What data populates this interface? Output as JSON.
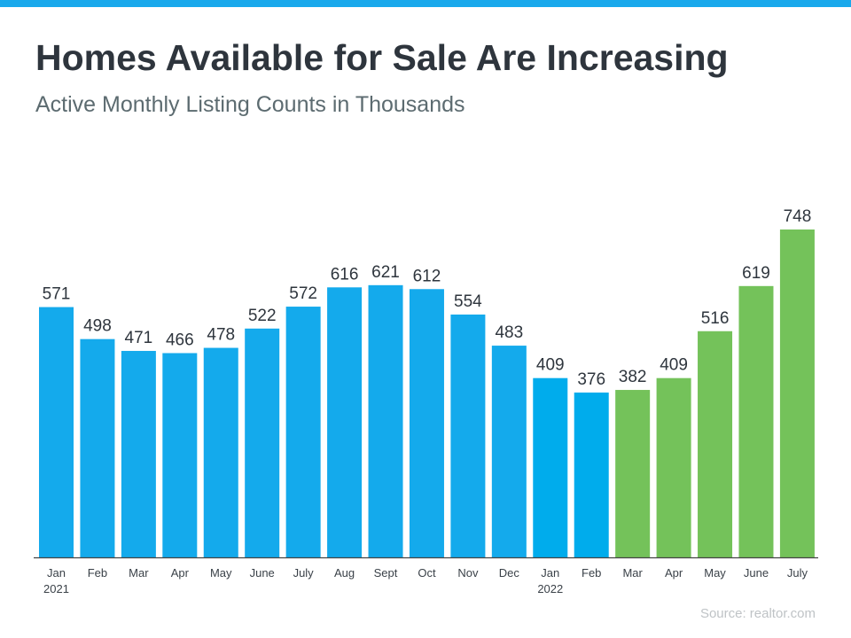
{
  "header": {
    "title": "Homes Available for Sale Are Increasing",
    "subtitle": "Active Monthly Listing Counts in Thousands"
  },
  "source": "Source: realtor.com",
  "colors": {
    "top_bar": "#1aa9ec",
    "blue_2021": "#14aaec",
    "blue_2022": "#00acec",
    "green": "#74c25a"
  },
  "chart_data": {
    "type": "bar",
    "title": "Homes Available for Sale Are Increasing",
    "subtitle": "Active Monthly Listing Counts in Thousands",
    "categories": [
      [
        "Jan",
        "2021"
      ],
      [
        "Feb"
      ],
      [
        "Mar"
      ],
      [
        "Apr"
      ],
      [
        "May"
      ],
      [
        "June"
      ],
      [
        "July"
      ],
      [
        "Aug"
      ],
      [
        "Sept"
      ],
      [
        "Oct"
      ],
      [
        "Nov"
      ],
      [
        "Dec"
      ],
      [
        "Jan",
        "2022"
      ],
      [
        "Feb"
      ],
      [
        "Mar"
      ],
      [
        "Apr"
      ],
      [
        "May"
      ],
      [
        "June"
      ],
      [
        "July"
      ]
    ],
    "values": [
      571,
      498,
      471,
      466,
      478,
      522,
      572,
      616,
      621,
      612,
      554,
      483,
      409,
      376,
      382,
      409,
      516,
      619,
      748
    ],
    "bar_colors": [
      "#14aaec",
      "#14aaec",
      "#14aaec",
      "#14aaec",
      "#14aaec",
      "#14aaec",
      "#14aaec",
      "#14aaec",
      "#14aaec",
      "#14aaec",
      "#14aaec",
      "#14aaec",
      "#00acec",
      "#00acec",
      "#74c25a",
      "#74c25a",
      "#74c25a",
      "#74c25a",
      "#74c25a"
    ],
    "data_labels": true,
    "ylim": [
      0,
      748
    ],
    "grid": false,
    "xlabel": "",
    "ylabel": ""
  }
}
